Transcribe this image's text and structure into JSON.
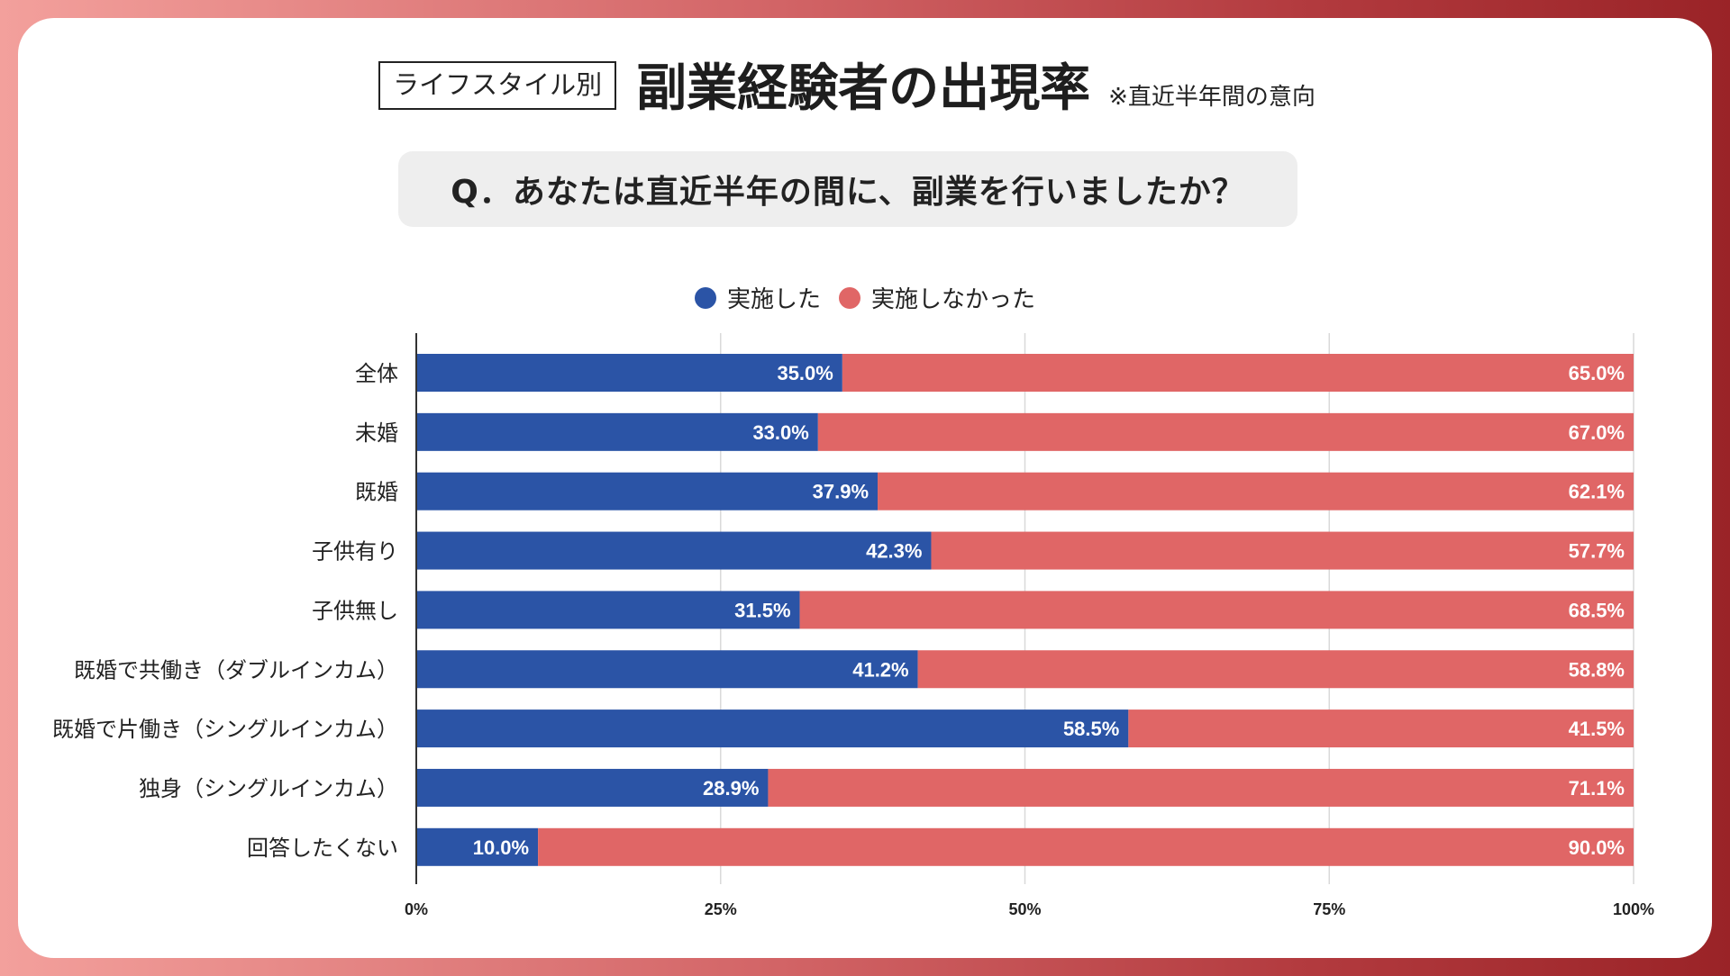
{
  "header": {
    "tag": "ライフスタイル別",
    "title": "副業経験者の出現率",
    "note": "※直近半年間の意向"
  },
  "question": "Q．あなたは直近半年の間に、副業を行いましたか？",
  "legend": {
    "did": "実施した",
    "did_not": "実施しなかった"
  },
  "colors": {
    "did": "#2b54a6",
    "did_not": "#e06666"
  },
  "chart_data": {
    "type": "bar",
    "orientation": "horizontal",
    "stacked": true,
    "categories": [
      "全体",
      "未婚",
      "既婚",
      "子供有り",
      "子供無し",
      "既婚で共働き（ダブルインカム）",
      "既婚で片働き（シングルインカム）",
      "独身（シングルインカム）",
      "回答したくない"
    ],
    "series": [
      {
        "name": "実施した",
        "values": [
          35.0,
          33.0,
          37.9,
          42.3,
          31.5,
          41.2,
          58.5,
          28.9,
          10.0
        ],
        "labels": [
          "35.0%",
          "33.0%",
          "37.9%",
          "42.3%",
          "31.5%",
          "41.2%",
          "58.5%",
          "28.9%",
          "10.0%"
        ]
      },
      {
        "name": "実施しなかった",
        "values": [
          65.0,
          67.0,
          62.1,
          57.7,
          68.5,
          58.8,
          41.5,
          71.1,
          90.0
        ],
        "labels": [
          "65.0%",
          "67.0%",
          "62.1%",
          "57.7%",
          "68.5%",
          "58.8%",
          "41.5%",
          "71.1%",
          "90.0%"
        ]
      }
    ],
    "xlim": [
      0,
      100
    ],
    "xticks": [
      0,
      25,
      50,
      75,
      100
    ],
    "xtick_labels": [
      "0%",
      "25%",
      "50%",
      "75%",
      "100%"
    ],
    "grid": true,
    "legend_position": "top-center"
  }
}
